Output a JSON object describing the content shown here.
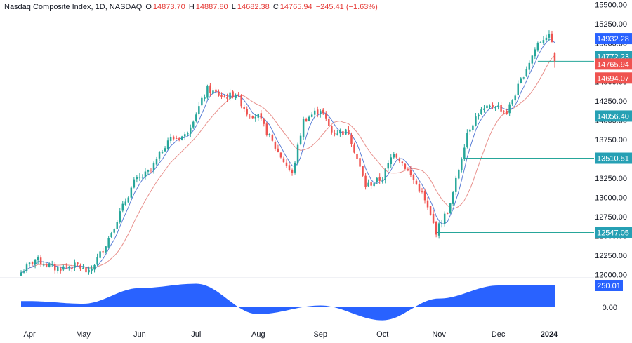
{
  "header": {
    "symbol": "Nasdaq Composite Index, 1D, NASDAQ",
    "open_label": "O",
    "open": "14873.70",
    "high_label": "H",
    "high": "14887.80",
    "low_label": "L",
    "low": "14682.38",
    "close_label": "C",
    "close": "14765.94",
    "change": "−245.41 (−1.63%)"
  },
  "colors": {
    "up": "#26a69a",
    "down": "#ef5350",
    "ma_fast": "#5b7fd6",
    "ma_slow": "#e8908c",
    "oscillator": "#2962ff",
    "level_line": "#26a69a",
    "level_label_bg": "#26a0b4",
    "axis_text": "#131722"
  },
  "chart_data": [
    {
      "type": "candlestick",
      "title": "Nasdaq Composite Index, 1D, NASDAQ",
      "x_tick_labels": [
        "Apr",
        "May",
        "Jun",
        "Jul",
        "Aug",
        "Sep",
        "Oct",
        "Nov",
        "Dec",
        "2024"
      ],
      "y_ticks": [
        12000,
        12250,
        12500,
        12750,
        13000,
        13250,
        13500,
        13750,
        14000,
        14250,
        14500,
        14750,
        15000,
        15250,
        15500
      ],
      "y_tick_labels": [
        "12000.00",
        "12250.00",
        "12500.00",
        "12750.00",
        "13000.00",
        "13250.00",
        "13500.00",
        "13750.00",
        "14000.00",
        "14250.00",
        "14500.00",
        "14750.00",
        "15000.00",
        "15250.00",
        "15500.00"
      ],
      "ylim": [
        11970,
        15560
      ],
      "ohlc_key_points": [
        {
          "month": "Apr",
          "close": 12100
        },
        {
          "month": "May",
          "close": 12150
        },
        {
          "month": "Jun",
          "close": 13250
        },
        {
          "month": "Jul",
          "close": 13800
        },
        {
          "month": "Jul (peak)",
          "close": 14400
        },
        {
          "month": "Aug",
          "close": 14100
        },
        {
          "month": "Aug (low)",
          "close": 13200
        },
        {
          "month": "Sep",
          "close": 14100
        },
        {
          "month": "Oct",
          "close": 13200
        },
        {
          "month": "Oct (low)",
          "close": 12547.05
        },
        {
          "month": "Nov",
          "close": 12900
        },
        {
          "month": "Dec",
          "close": 14100
        },
        {
          "month": "Dec (high)",
          "close": 15100
        },
        {
          "month": "last",
          "close": 14765.94
        }
      ],
      "horizontal_levels": [
        {
          "value": 12547.05,
          "label": "12547.05"
        },
        {
          "value": 13510.51,
          "label": "13510.51"
        },
        {
          "value": 14056.4,
          "label": "14056.40"
        },
        {
          "value": 14765.94,
          "label": "14765.94"
        }
      ],
      "price_labels": [
        {
          "value": 14932.28,
          "label": "14932.28",
          "color": "#2962ff"
        },
        {
          "value": 14772.23,
          "label": "14772.23",
          "color": "#26a0b4"
        },
        {
          "value": 14765.94,
          "label": "14765.94",
          "color": "#ef5350"
        },
        {
          "value": 14694.07,
          "label": "14694.07",
          "color": "#ef5350"
        }
      ],
      "series": [
        {
          "name": "Fast MA",
          "color": "#5b7fd6"
        },
        {
          "name": "Slow MA",
          "color": "#e8908c"
        }
      ]
    },
    {
      "type": "area",
      "y_ticks": [
        0
      ],
      "y_tick_labels": [
        "0.00"
      ],
      "last_value": 250.01,
      "last_label": "250.01",
      "key_points": [
        {
          "month": "Apr",
          "value": 70
        },
        {
          "month": "May",
          "value": 40
        },
        {
          "month": "Jun",
          "value": 220
        },
        {
          "month": "Jul",
          "value": 270
        },
        {
          "month": "Aug",
          "value": -80
        },
        {
          "month": "Sep",
          "value": 20
        },
        {
          "month": "Oct",
          "value": -150
        },
        {
          "month": "Nov",
          "value": 100
        },
        {
          "month": "Dec",
          "value": 250
        },
        {
          "month": "last",
          "value": 250.01
        }
      ]
    }
  ]
}
